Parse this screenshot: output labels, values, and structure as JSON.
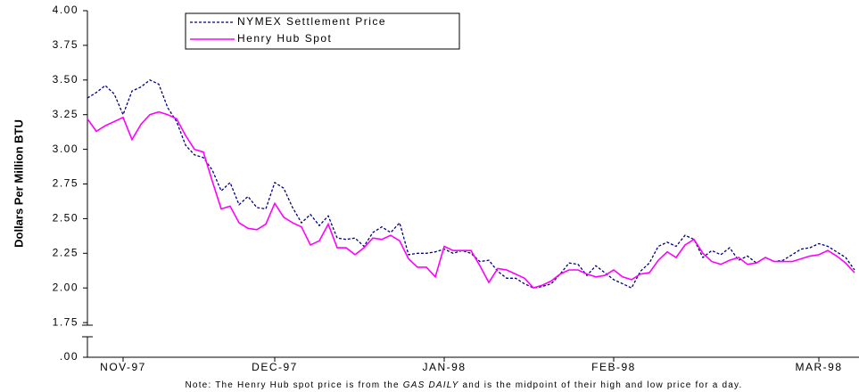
{
  "chart_data": {
    "type": "line",
    "y_label": "Dollars Per Million BTU",
    "note": [
      "Note: The Henry Hub spot price is from the ",
      "GAS DAILY",
      " and is the midpoint of their high and low price for a day."
    ],
    "categories": [
      null,
      null,
      null,
      null,
      "NOV-97",
      null,
      null,
      null,
      null,
      null,
      null,
      null,
      null,
      null,
      null,
      null,
      null,
      null,
      null,
      null,
      null,
      "DEC-97",
      null,
      null,
      null,
      null,
      null,
      null,
      null,
      null,
      null,
      null,
      null,
      null,
      null,
      null,
      null,
      null,
      null,
      null,
      "JAN-98",
      null,
      null,
      null,
      null,
      null,
      null,
      null,
      null,
      null,
      null,
      null,
      null,
      null,
      null,
      null,
      null,
      null,
      null,
      "FEB-98",
      null,
      null,
      null,
      null,
      null,
      null,
      null,
      null,
      null,
      null,
      null,
      null,
      null,
      null,
      null,
      null,
      null,
      null,
      null,
      null,
      null,
      null,
      "MAR-98",
      null,
      null,
      null,
      null
    ],
    "series": [
      {
        "name": "NYMEX Settlement Price",
        "color": "#000080",
        "dash": true,
        "values": [
          3.37,
          3.41,
          3.46,
          3.4,
          3.25,
          3.42,
          3.45,
          3.5,
          3.47,
          3.3,
          3.2,
          3.03,
          2.96,
          2.94,
          2.85,
          2.7,
          2.76,
          2.6,
          2.66,
          2.58,
          2.57,
          2.76,
          2.72,
          2.58,
          2.47,
          2.53,
          2.45,
          2.52,
          2.36,
          2.35,
          2.36,
          2.3,
          2.4,
          2.44,
          2.4,
          2.47,
          2.24,
          2.25,
          2.25,
          2.26,
          2.28,
          2.25,
          2.27,
          2.25,
          2.19,
          2.2,
          2.12,
          2.07,
          2.07,
          2.03,
          2.0,
          2.01,
          2.03,
          2.1,
          2.18,
          2.17,
          2.09,
          2.16,
          2.11,
          2.06,
          2.03,
          2.0,
          2.12,
          2.18,
          2.3,
          2.33,
          2.3,
          2.38,
          2.35,
          2.22,
          2.27,
          2.24,
          2.29,
          2.2,
          2.23,
          2.18,
          2.22,
          2.19,
          2.2,
          2.24,
          2.28,
          2.29,
          2.32,
          2.3,
          2.26,
          2.22,
          2.13
        ]
      },
      {
        "name": "Henry Hub Spot",
        "color": "#ff00ff",
        "dash": false,
        "values": [
          3.22,
          3.13,
          3.17,
          3.2,
          3.23,
          3.07,
          3.18,
          3.25,
          3.27,
          3.25,
          3.22,
          3.1,
          3.0,
          2.98,
          2.77,
          2.57,
          2.59,
          2.47,
          2.43,
          2.42,
          2.46,
          2.61,
          2.51,
          2.47,
          2.44,
          2.31,
          2.34,
          2.46,
          2.29,
          2.29,
          2.24,
          2.29,
          2.36,
          2.35,
          2.38,
          2.34,
          2.21,
          2.15,
          2.15,
          2.08,
          2.3,
          2.27,
          2.27,
          2.27,
          2.16,
          2.04,
          2.14,
          2.13,
          2.1,
          2.07,
          2.0,
          2.02,
          2.05,
          2.1,
          2.13,
          2.13,
          2.1,
          2.08,
          2.09,
          2.13,
          2.08,
          2.06,
          2.1,
          2.11,
          2.2,
          2.26,
          2.22,
          2.31,
          2.35,
          2.25,
          2.19,
          2.17,
          2.2,
          2.22,
          2.17,
          2.18,
          2.22,
          2.19,
          2.19,
          2.19,
          2.21,
          2.23,
          2.24,
          2.27,
          2.23,
          2.18,
          2.11
        ]
      }
    ],
    "ylim": [
      0,
      4
    ],
    "y_break": [
      0,
      1.5
    ],
    "yticks": [
      {
        "value": 0,
        "label": ".00"
      },
      1.75,
      {
        "value": 2,
        "label": "2.00"
      },
      2.25,
      {
        "value": 2.5,
        "label": "2.50"
      },
      2.75,
      {
        "value": 3,
        "label": "3.00"
      },
      3.25,
      {
        "value": 3.5,
        "label": "3.50"
      },
      3.75,
      {
        "value": 4,
        "label": "4.00"
      }
    ],
    "legend": "top-left"
  }
}
